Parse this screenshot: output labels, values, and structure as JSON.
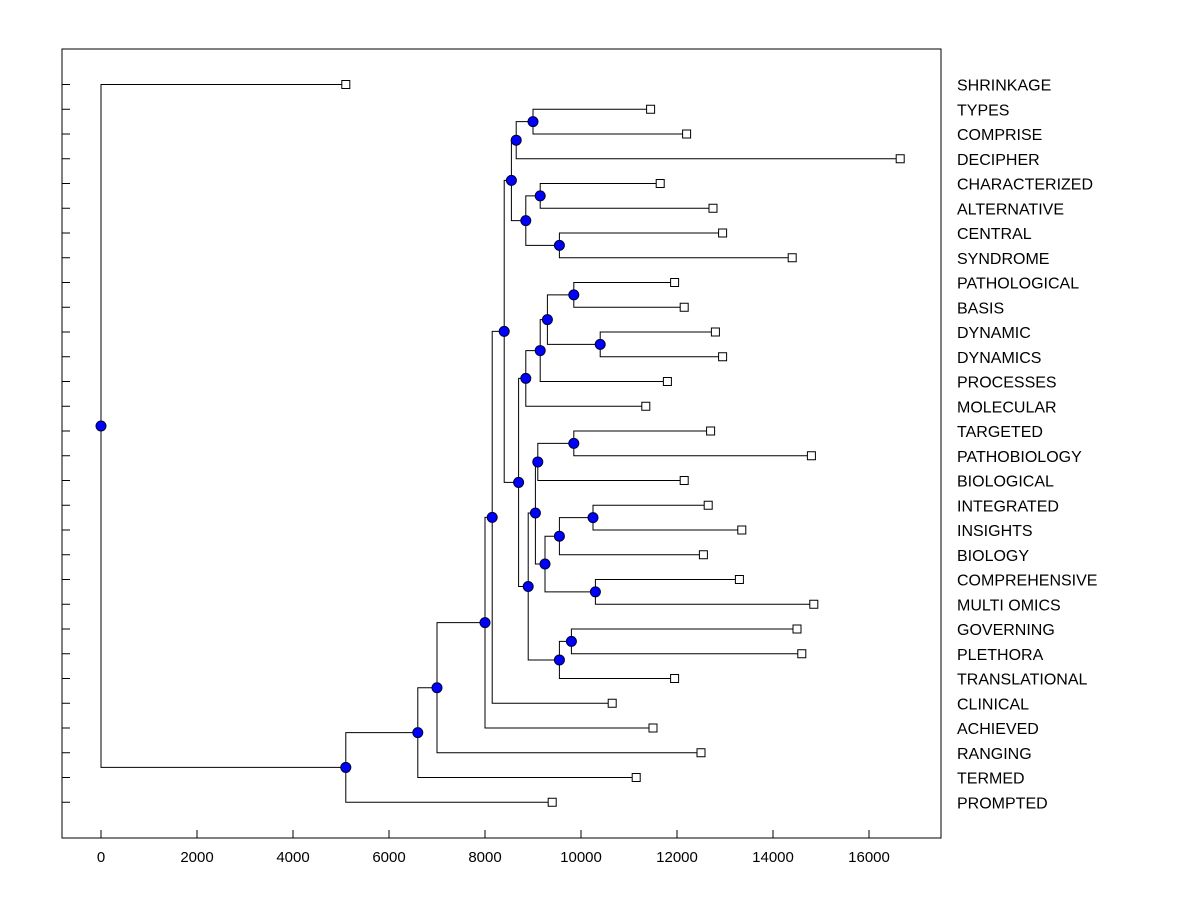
{
  "chart_data": {
    "type": "dendrogram",
    "title": "",
    "xlabel": "",
    "ylabel": "",
    "xlim": [
      -1000,
      17500
    ],
    "x_ticks": [
      0,
      2000,
      4000,
      6000,
      8000,
      10000,
      12000,
      14000,
      16000
    ],
    "x_tick_labels": [
      "0",
      "2000",
      "4000",
      "6000",
      "8000",
      "10000",
      "12000",
      "14000",
      "16000"
    ],
    "leaves": [
      {
        "label": "SHRINKAGE",
        "value": 5100
      },
      {
        "label": "TYPES",
        "value": 11450
      },
      {
        "label": "COMPRISE",
        "value": 12200
      },
      {
        "label": "DECIPHER",
        "value": 16650
      },
      {
        "label": "CHARACTERIZED",
        "value": 11650
      },
      {
        "label": "ALTERNATIVE",
        "value": 12750
      },
      {
        "label": "CENTRAL",
        "value": 12950
      },
      {
        "label": "SYNDROME",
        "value": 14400
      },
      {
        "label": "PATHOLOGICAL",
        "value": 11950
      },
      {
        "label": "BASIS",
        "value": 12150
      },
      {
        "label": "DYNAMIC",
        "value": 12800
      },
      {
        "label": "DYNAMICS",
        "value": 12950
      },
      {
        "label": "PROCESSES",
        "value": 11800
      },
      {
        "label": "MOLECULAR",
        "value": 11350
      },
      {
        "label": "TARGETED",
        "value": 12700
      },
      {
        "label": "PATHOBIOLOGY",
        "value": 14800
      },
      {
        "label": "BIOLOGICAL",
        "value": 12150
      },
      {
        "label": "INTEGRATED",
        "value": 12650
      },
      {
        "label": "INSIGHTS",
        "value": 13350
      },
      {
        "label": "BIOLOGY",
        "value": 12550
      },
      {
        "label": "COMPREHENSIVE",
        "value": 13300
      },
      {
        "label": "MULTI OMICS",
        "value": 14850
      },
      {
        "label": "GOVERNING",
        "value": 14500
      },
      {
        "label": "PLETHORA",
        "value": 14600
      },
      {
        "label": "TRANSLATIONAL",
        "value": 11950
      },
      {
        "label": "CLINICAL",
        "value": 10650
      },
      {
        "label": "ACHIEVED",
        "value": 11500
      },
      {
        "label": "RANGING",
        "value": 12500
      },
      {
        "label": "TERMED",
        "value": 11150
      },
      {
        "label": "PROMPTED",
        "value": 9400
      }
    ],
    "merges": [
      {
        "id": "n_types_comprise",
        "children": [
          1,
          2
        ],
        "value": 9000
      },
      {
        "id": "n_tcd",
        "children": [
          "n_types_comprise",
          3
        ],
        "value": 8650
      },
      {
        "id": "n_char_alt",
        "children": [
          4,
          5
        ],
        "value": 9150
      },
      {
        "id": "n_central_syn",
        "children": [
          6,
          7
        ],
        "value": 9550
      },
      {
        "id": "n_cacs",
        "children": [
          "n_char_alt",
          "n_central_syn"
        ],
        "value": 8850
      },
      {
        "id": "n_top_a",
        "children": [
          "n_tcd",
          "n_cacs"
        ],
        "value": 8550
      },
      {
        "id": "n_path_basis",
        "children": [
          8,
          9
        ],
        "value": 9850
      },
      {
        "id": "n_dyn",
        "children": [
          10,
          11
        ],
        "value": 10400
      },
      {
        "id": "n_pbd",
        "children": [
          "n_path_basis",
          "n_dyn"
        ],
        "value": 9300
      },
      {
        "id": "n_pbdp",
        "children": [
          "n_pbd",
          12
        ],
        "value": 9150
      },
      {
        "id": "n_pbdpm",
        "children": [
          "n_pbdp",
          13
        ],
        "value": 8850
      },
      {
        "id": "n_targ_patho",
        "children": [
          14,
          15
        ],
        "value": 9850
      },
      {
        "id": "n_tpb",
        "children": [
          "n_targ_patho",
          16
        ],
        "value": 9100
      },
      {
        "id": "n_int_ins",
        "children": [
          17,
          18
        ],
        "value": 10250
      },
      {
        "id": "n_iib",
        "children": [
          "n_int_ins",
          19
        ],
        "value": 9550
      },
      {
        "id": "n_comp_multi",
        "children": [
          20,
          21
        ],
        "value": 10300
      },
      {
        "id": "n_iibcm",
        "children": [
          "n_iib",
          "n_comp_multi"
        ],
        "value": 9250
      },
      {
        "id": "n_tpb_iibcm",
        "children": [
          "n_tpb",
          "n_iibcm"
        ],
        "value": 9050
      },
      {
        "id": "n_gov_pleth",
        "children": [
          22,
          23
        ],
        "value": 9800
      },
      {
        "id": "n_gpt",
        "children": [
          "n_gov_pleth",
          24
        ],
        "value": 9550
      },
      {
        "id": "n_mid",
        "children": [
          "n_tpb_iibcm",
          "n_gpt"
        ],
        "value": 8900
      },
      {
        "id": "n_pm_mid",
        "children": [
          "n_pbdpm",
          "n_mid"
        ],
        "value": 8700
      },
      {
        "id": "n_upper",
        "children": [
          "n_top_a",
          "n_pm_mid"
        ],
        "value": 8400
      },
      {
        "id": "n_clin",
        "children": [
          "n_upper",
          25
        ],
        "value": 8150
      },
      {
        "id": "n_ach",
        "children": [
          "n_clin",
          26
        ],
        "value": 8000
      },
      {
        "id": "n_rang",
        "children": [
          "n_ach",
          27
        ],
        "value": 7000
      },
      {
        "id": "n_term",
        "children": [
          "n_rang",
          28
        ],
        "value": 6600
      },
      {
        "id": "n_prompt",
        "children": [
          "n_term",
          29
        ],
        "value": 5100
      },
      {
        "id": "n_root",
        "children": [
          0,
          "n_prompt"
        ],
        "value": 0
      }
    ],
    "colors": {
      "node_fill": "#0000ff",
      "leaf_fill": "#ffffff",
      "line": "#000000"
    }
  }
}
